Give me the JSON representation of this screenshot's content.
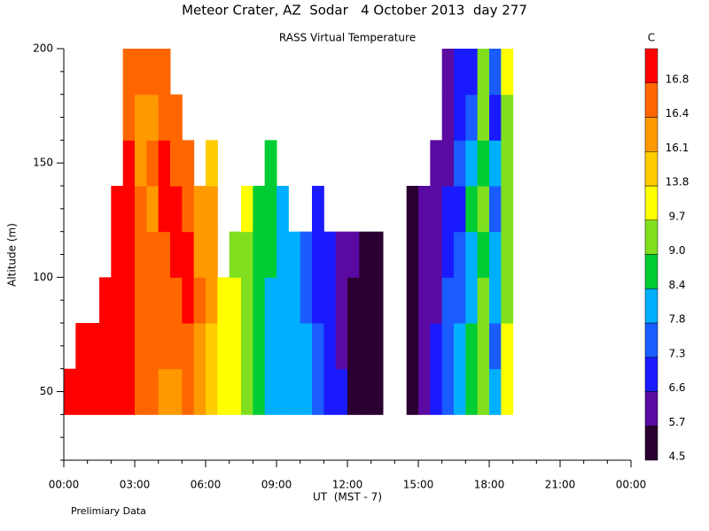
{
  "chart_data": {
    "type": "contour",
    "title": "Meteor Crater, AZ  Sodar   4 October 2013  day 277",
    "subtitle": "RASS Virtual Temperature",
    "ylabel": "Altitude (m)",
    "xlabel": "UT  (MST - 7)",
    "note": "Prelimiary Data",
    "xlim": [
      0,
      24
    ],
    "xticks": [
      {
        "value": 0,
        "label": "00:00"
      },
      {
        "value": 3,
        "label": "03:00"
      },
      {
        "value": 6,
        "label": "06:00"
      },
      {
        "value": 9,
        "label": "09:00"
      },
      {
        "value": 12,
        "label": "12:00"
      },
      {
        "value": 15,
        "label": "15:00"
      },
      {
        "value": 18,
        "label": "18:00"
      },
      {
        "value": 21,
        "label": "21:00"
      },
      {
        "value": 24,
        "label": "00:00"
      }
    ],
    "xminorticks": [
      1,
      2,
      4,
      5,
      7,
      8,
      10,
      11,
      13,
      14,
      16,
      17,
      19,
      20,
      22,
      23
    ],
    "ylim": [
      20,
      200
    ],
    "yticks": [
      50,
      100,
      150,
      200
    ],
    "yminorticks": [
      20,
      30,
      40,
      60,
      70,
      80,
      90,
      110,
      120,
      130,
      140,
      160,
      170,
      180,
      190
    ],
    "xbins": [
      0,
      0.5,
      1,
      1.5,
      2,
      2.5,
      3,
      3.5,
      4,
      4.5,
      5,
      5.5,
      6,
      6.5,
      7,
      7.5,
      8,
      8.5,
      9,
      9.5,
      10,
      10.5,
      11,
      11.5,
      12,
      12.5,
      13,
      13.5,
      14,
      14.5,
      15,
      15.5,
      16,
      16.5,
      17,
      17.5,
      18,
      18.5,
      19
    ],
    "ybins": [
      40,
      60,
      80,
      100,
      120,
      140,
      160,
      180,
      200
    ],
    "values": [
      [
        17,
        null,
        null,
        null,
        null,
        null,
        null,
        null
      ],
      [
        17,
        17,
        null,
        null,
        null,
        null,
        null,
        null
      ],
      [
        17,
        17,
        null,
        null,
        null,
        null,
        null,
        null
      ],
      [
        17,
        17,
        17,
        null,
        null,
        null,
        null,
        null
      ],
      [
        17,
        17,
        17,
        17,
        17,
        null,
        null,
        null
      ],
      [
        17,
        17,
        17,
        16.9,
        16.9,
        17,
        16.6,
        16.6
      ],
      [
        16.6,
        16.6,
        16.5,
        16.7,
        16.6,
        16.3,
        16.3,
        16.5
      ],
      [
        16.5,
        16.5,
        16.6,
        16.5,
        16.3,
        16.5,
        16.2,
        16.5
      ],
      [
        16.3,
        16.5,
        16.5,
        16.6,
        16.9,
        16.9,
        16.5,
        16.5
      ],
      [
        16.3,
        16.4,
        16.5,
        16.9,
        16.9,
        16.6,
        16.5,
        null
      ],
      [
        16.4,
        16.5,
        16.9,
        16.9,
        16.5,
        16.4,
        null,
        null
      ],
      [
        16.2,
        16.3,
        16.4,
        16.3,
        16.2,
        null,
        null,
        null
      ],
      [
        14.5,
        14.5,
        16.2,
        16.3,
        16.2,
        15,
        null,
        null
      ],
      [
        12,
        12,
        11,
        null,
        null,
        null,
        null,
        null
      ],
      [
        10,
        10,
        9.8,
        9.5,
        null,
        null,
        null,
        null
      ],
      [
        9.3,
        9.3,
        9.3,
        9.5,
        9.8,
        null,
        null,
        null
      ],
      [
        8.7,
        8.7,
        8.6,
        8.6,
        8.8,
        null,
        null,
        null
      ],
      [
        8.0,
        8.0,
        8.2,
        8.5,
        8.6,
        8.8,
        null,
        null
      ],
      [
        8.0,
        7.9,
        7.9,
        7.9,
        7.9,
        null,
        null,
        null
      ],
      [
        8.0,
        8.0,
        7.9,
        7.9,
        null,
        null,
        null,
        null
      ],
      [
        7.9,
        7.9,
        7.6,
        7.5,
        null,
        null,
        null,
        null
      ],
      [
        7.5,
        7.4,
        7.0,
        7.0,
        7.0,
        null,
        null,
        null
      ],
      [
        7.0,
        6.9,
        6.8,
        6.8,
        null,
        null,
        null,
        null
      ],
      [
        6.7,
        6.2,
        6.0,
        6.0,
        null,
        null,
        null,
        null
      ],
      [
        5.0,
        5.0,
        5.5,
        5.8,
        null,
        null,
        null,
        null
      ],
      [
        5.0,
        4.8,
        4.8,
        5.2,
        null,
        null,
        null,
        null
      ],
      [
        4.8,
        4.8,
        4.8,
        4.8,
        null,
        null,
        null,
        null
      ],
      [
        null,
        null,
        null,
        null,
        null,
        null,
        null,
        null
      ],
      [
        null,
        null,
        null,
        null,
        null,
        null,
        null,
        null
      ],
      [
        5.2,
        5.0,
        5.0,
        5.0,
        5.2,
        null,
        null,
        null
      ],
      [
        6.0,
        5.9,
        5.8,
        5.8,
        5.8,
        null,
        null,
        null
      ],
      [
        6.8,
        6.7,
        6.0,
        6.0,
        5.8,
        5.8,
        null,
        null
      ],
      [
        7.5,
        7.4,
        7.3,
        7.0,
        6.8,
        6.0,
        5.8,
        5.8
      ],
      [
        7.9,
        7.9,
        7.6,
        7.3,
        7.0,
        7.5,
        6.8,
        6.8
      ],
      [
        8.6,
        8.5,
        8.0,
        8.0,
        8.5,
        7.9,
        7.5,
        7.0
      ],
      [
        9.2,
        9.1,
        9.0,
        8.6,
        9.0,
        8.6,
        9.2,
        9.3
      ],
      [
        8.0,
        7.5,
        7.9,
        8.0,
        7.4,
        7.9,
        7.0,
        7.5
      ],
      [
        10,
        10,
        9.5,
        9.2,
        9.5,
        9.3,
        9.2,
        9.8
      ]
    ],
    "colorbar": {
      "label": "C",
      "levels": [
        4.5,
        5.7,
        6.6,
        7.3,
        7.8,
        8.4,
        {
          "value": 9,
          "label": "9.0"
        },
        9.7,
        13.8,
        16.1,
        16.4,
        16.8
      ],
      "colors": [
        "#2a0030",
        "#5a0aa0",
        "#1a1aff",
        "#1a5cff",
        "#00b0ff",
        "#00cc33",
        "#80e020",
        "#ffff00",
        "#ffcc00",
        "#ff9900",
        "#ff6600",
        "#ff0000"
      ]
    }
  }
}
